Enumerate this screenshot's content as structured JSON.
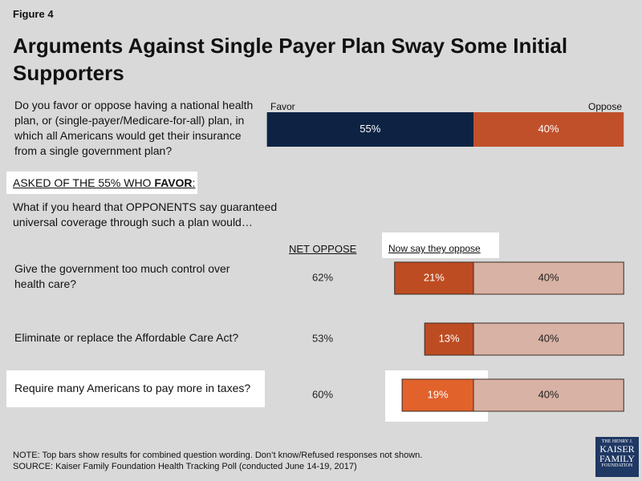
{
  "chart_data": [
    {
      "type": "bar",
      "figure_label": "Figure 4",
      "title": "Arguments Against Single Payer Plan Sway Some Initial Supporters",
      "categories": [
        "Do you favor or oppose having a national health plan, or (single-payer/Medicare-for-all) plan, in which all Americans would get their insurance from a single government plan?"
      ],
      "series": [
        {
          "name": "Favor",
          "color": "#0e2344",
          "values": [
            55
          ],
          "value_labels": [
            "55%"
          ]
        },
        {
          "name": "Oppose",
          "color": "#c0502a",
          "values": [
            40
          ],
          "value_labels": [
            "40%"
          ]
        }
      ]
    },
    {
      "type": "bar",
      "subgroup_label": [
        "ASKED OF THE 55% WHO ",
        "FAVOR",
        ":"
      ],
      "prompt": "What if you heard that OPPONENTS say guaranteed universal coverage through such a plan would…",
      "net_oppose": {
        "name": "NET OPPOSE",
        "values": [
          62,
          53,
          60
        ],
        "value_labels": [
          "62%",
          "53%",
          "60%"
        ]
      },
      "categories": [
        "Give the government too much control over health care?",
        "Eliminate or replace the Affordable Care Act?",
        "Require many Americans to pay more in taxes?"
      ],
      "series": [
        {
          "name": "Now say they oppose",
          "colors": [
            "#be4c22",
            "#be4c22",
            "#e2622c"
          ],
          "values": [
            21,
            13,
            19
          ],
          "value_labels": [
            "21%",
            "13%",
            "19%"
          ]
        },
        {
          "color": "#d8b2a4",
          "values": [
            40,
            40,
            40
          ],
          "value_labels": [
            "40%",
            "40%",
            "40%"
          ]
        }
      ]
    }
  ],
  "note": "NOTE: Top bars show results for combined question wording. Don’t know/Refused responses not shown.",
  "source": "SOURCE: Kaiser Family Foundation Health Tracking Poll (conducted June 14-19, 2017)",
  "logo": [
    "THE HENRY J.",
    "KAISER",
    "FAMILY",
    "FOUNDATION"
  ]
}
